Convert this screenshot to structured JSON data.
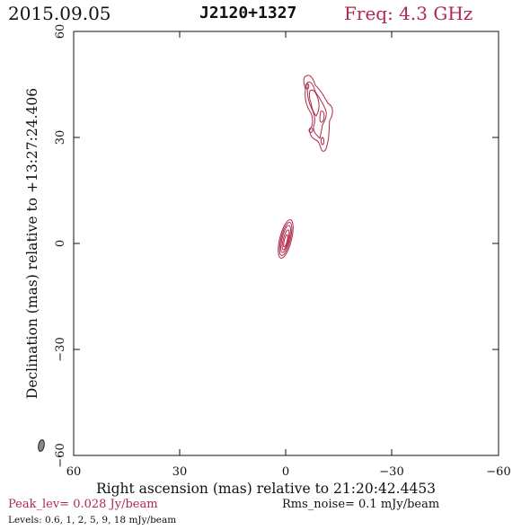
{
  "header": {
    "date": "2015.09.05",
    "source": "J2120+1327",
    "frequency": "Freq: 4.3 GHz"
  },
  "plot": {
    "xlabel": "Right ascension (mas) relative to 21:20:42.4453",
    "ylabel": "Declination (mas) relative to +13:27:24.406",
    "x_ticks": [
      "60",
      "30",
      "0",
      "−30",
      "−60"
    ],
    "y_ticks": [
      "60",
      "30",
      "0",
      "−30",
      "−60"
    ],
    "x_range": [
      60,
      -60
    ],
    "y_range": [
      -60,
      60
    ],
    "contour_color": "#b0284a",
    "beam_color": "#888888"
  },
  "footer": {
    "peak": "Peak_lev=  0.028 Jy/beam",
    "rms": "Rms_noise=   0.1 mJy/beam",
    "levels": "Levels: 0.6,    1,    2,    5,    9,   18 mJy/beam"
  }
}
